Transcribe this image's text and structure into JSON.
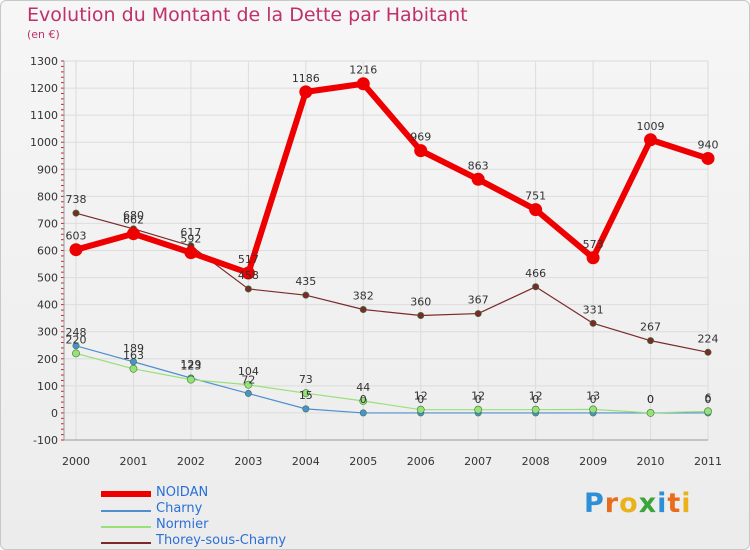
{
  "header": {
    "title": "Evolution du Montant de la Dette par Habitant",
    "unit": "(en €)"
  },
  "logo": {
    "text": "Proxiti",
    "letters": [
      "P",
      "r",
      "o",
      "x",
      "i",
      "t",
      "i"
    ],
    "colors": [
      "#2d8fd6",
      "#e96b1b",
      "#e9b21b",
      "#3ba53b",
      "#2d8fd6",
      "#e96b1b",
      "#e9b21b"
    ]
  },
  "chart_data": {
    "type": "line",
    "title": "Evolution du Montant de la Dette par Habitant",
    "ylabel": "(en €)",
    "xlabel": "",
    "x": [
      "2000",
      "2001",
      "2002",
      "2003",
      "2004",
      "2005",
      "2006",
      "2007",
      "2008",
      "2009",
      "2010",
      "2011"
    ],
    "ylim": [
      -100,
      1300
    ],
    "yticks": [
      -100,
      0,
      100,
      200,
      300,
      400,
      500,
      600,
      700,
      800,
      900,
      1000,
      1100,
      1200,
      1300
    ],
    "grid": true,
    "legend_position": "bottom-left",
    "series": [
      {
        "name": "NOIDAN",
        "color": "#ee0000",
        "values": [
          603,
          662,
          592,
          517,
          1186,
          1216,
          969,
          863,
          751,
          573,
          1009,
          940
        ]
      },
      {
        "name": "Charny",
        "color": "#4f8fd0",
        "values": [
          248,
          189,
          129,
          72,
          15,
          0,
          0,
          0,
          0,
          0,
          0,
          0
        ]
      },
      {
        "name": "Normier",
        "color": "#99e07a",
        "values": [
          220,
          163,
          123,
          104,
          73,
          44,
          12,
          12,
          12,
          13,
          0,
          6
        ]
      },
      {
        "name": "Thorey-sous-Charny",
        "color": "#7a2a2a",
        "values": [
          738,
          680,
          617,
          458,
          435,
          382,
          360,
          367,
          466,
          331,
          267,
          224
        ]
      }
    ]
  }
}
